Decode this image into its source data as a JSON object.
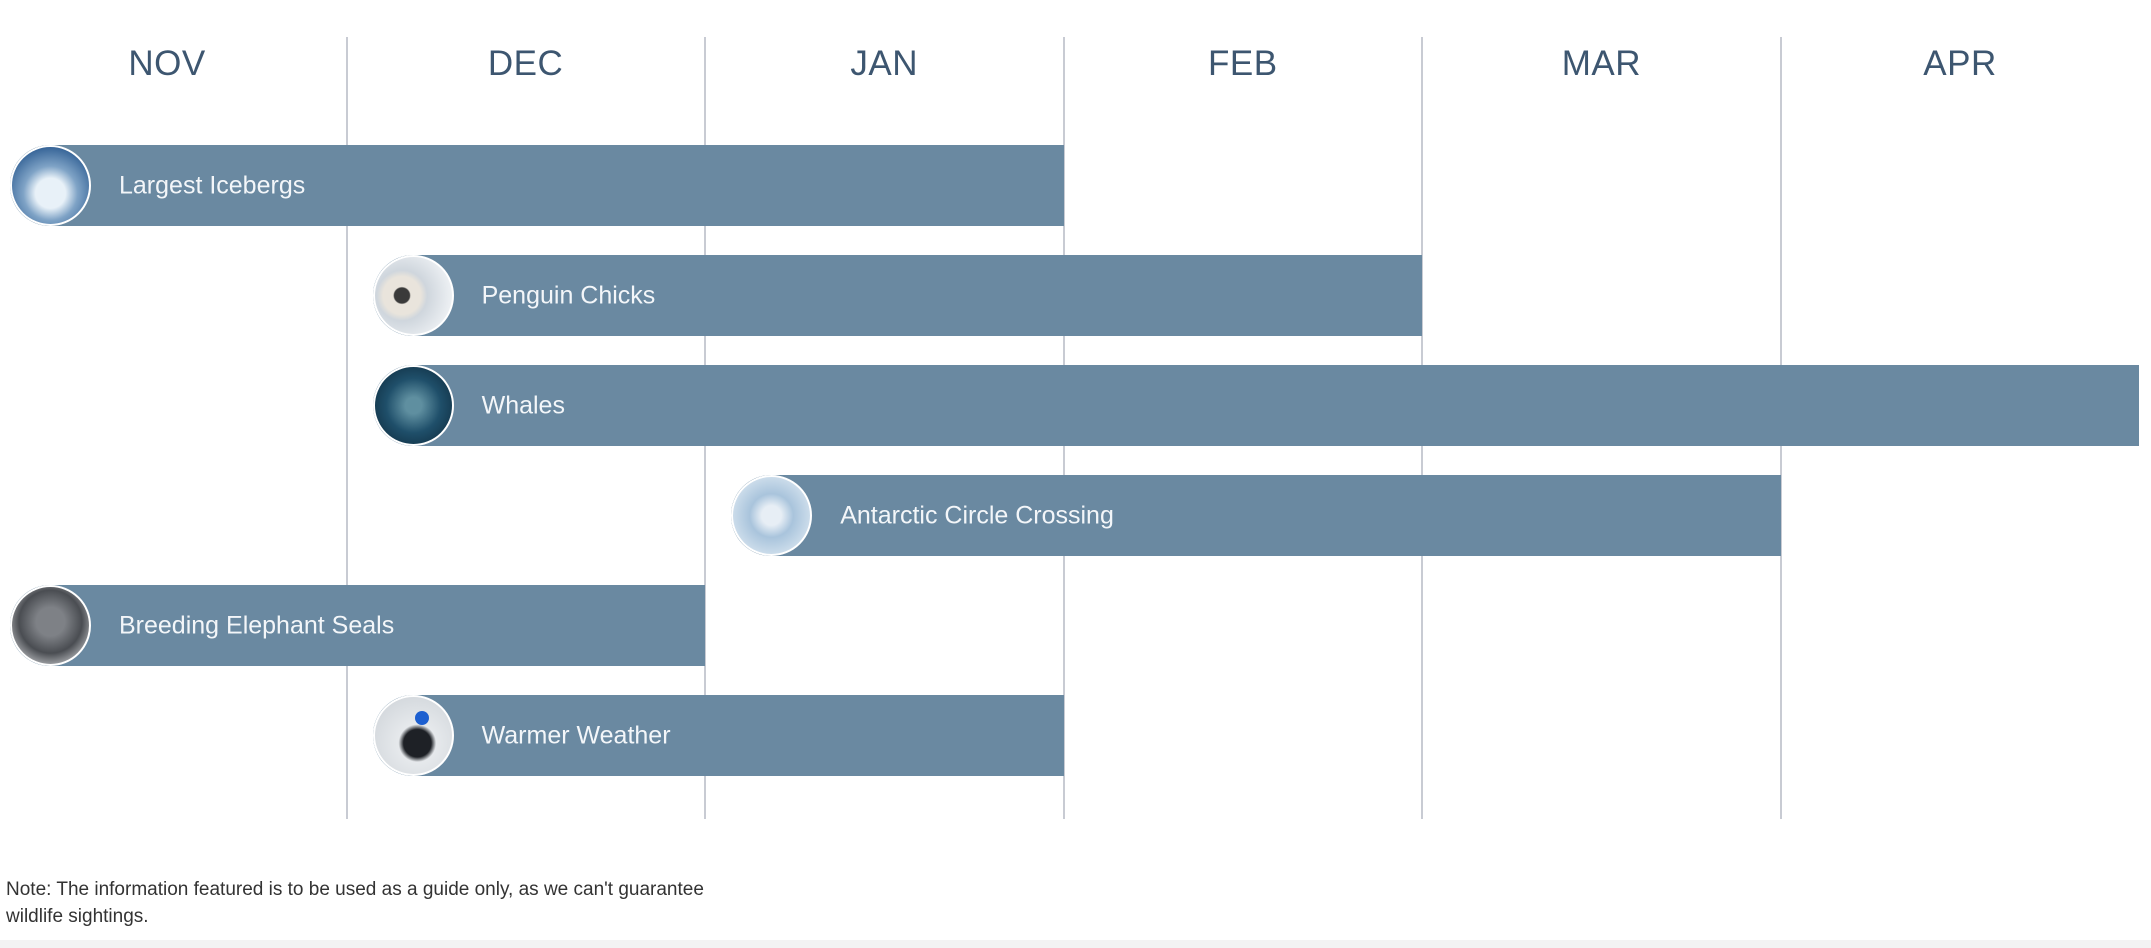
{
  "chart_data": {
    "type": "gantt",
    "categories": [
      "NOV",
      "DEC",
      "JAN",
      "FEB",
      "MAR",
      "APR"
    ],
    "bar_color": "#6a89a1",
    "header_color": "#3d5670",
    "series": [
      {
        "name": "Largest Icebergs",
        "start": "NOV",
        "end": "JAN",
        "photo": "iceberg"
      },
      {
        "name": "Penguin Chicks",
        "start": "DEC",
        "end": "FEB",
        "photo": "penguin"
      },
      {
        "name": "Whales",
        "start": "DEC",
        "end": "APR",
        "photo": "whale"
      },
      {
        "name": "Antarctic Circle Crossing",
        "start": "JAN",
        "end": "MAR",
        "photo": "ship"
      },
      {
        "name": "Breeding Elephant Seals",
        "start": "NOV",
        "end": "DEC",
        "photo": "seal"
      },
      {
        "name": "Warmer Weather",
        "start": "DEC",
        "end": "JAN",
        "photo": "person"
      }
    ]
  },
  "note": "Note: The information featured is to be used as a guide only, as we can't guarantee wildlife sightings."
}
